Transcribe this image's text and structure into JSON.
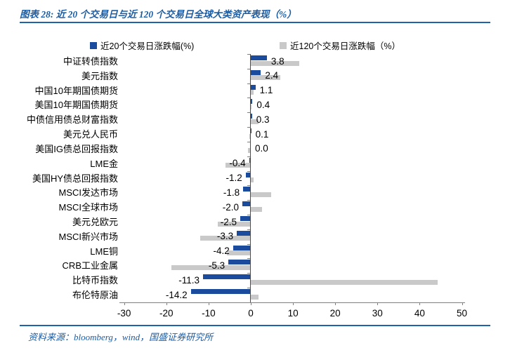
{
  "header": {
    "title": "图表 28:  近 20 个交易日与近 120 个交易日全球大类资产表现（%）"
  },
  "legend": [
    {
      "label": "近20个交易日涨跌幅(%)",
      "color": "#1a4b9c"
    },
    {
      "label": "近120个交易日涨跌幅（%）",
      "color": "#c9c9c9"
    }
  ],
  "chart_data": {
    "type": "bar",
    "orientation": "horizontal",
    "title": "近 20 个交易日与近 120 个交易日全球大类资产表现（%）",
    "categories": [
      "中证转债指数",
      "美元指数",
      "中国10年期国债期货",
      "美国10年期国债期货",
      "中债信用债总财富指数",
      "美元兑人民币",
      "美国IG债总回报指数",
      "LME金",
      "美国HY债总回报指数",
      "MSCI发达市场",
      "MSCI全球市场",
      "美元兑欧元",
      "MSCI新兴市场",
      "LME铜",
      "CRB工业金属",
      "比特币指数",
      "布伦特原油"
    ],
    "series": [
      {
        "name": "近20个交易日涨跌幅(%)",
        "color": "#1a4b9c",
        "values": [
          3.8,
          2.4,
          1.1,
          0.4,
          0.3,
          0.1,
          0.0,
          -0.4,
          -1.2,
          -1.8,
          -2.0,
          -2.5,
          -3.3,
          -4.2,
          -5.3,
          -11.3,
          -14.2
        ],
        "data_labels": [
          "3.8",
          "2.4",
          "1.1",
          "0.4",
          "0.3",
          "0.1",
          "0.0",
          "-0.4",
          "-1.2",
          "-1.8",
          "-2.0",
          "-2.5",
          "-3.3",
          "-4.2",
          "-5.3",
          "-11.3",
          "-14.2"
        ]
      },
      {
        "name": "近120个交易日涨跌幅（%）",
        "color": "#c9c9c9",
        "values": [
          11.5,
          7.0,
          0.7,
          0.2,
          1.8,
          -0.4,
          -0.7,
          -6.0,
          0.7,
          4.8,
          2.7,
          -7.9,
          -11.9,
          -5.6,
          -18.8,
          44.2,
          1.9
        ],
        "data_labels": null
      }
    ],
    "xlim": [
      -30,
      50
    ],
    "x_tick_labels": [
      "-30",
      "-20",
      "-10",
      "0",
      "10",
      "20",
      "30",
      "40",
      "50"
    ],
    "x_tick_values": [
      -30,
      -20,
      -10,
      0,
      10,
      20,
      30,
      40,
      50
    ],
    "grid": false,
    "legend_position": "top"
  },
  "footer": {
    "source": "资料来源：bloomberg，wind，国盛证券研究所"
  },
  "colors": {
    "bar_20d": "#1a4b9c",
    "bar_120d": "#c9c9c9",
    "accent_blue": "#1f63a8",
    "title_text": "#1c5ca3",
    "axis": "#7f7f7f",
    "zero_line": "#4d4d4d"
  }
}
